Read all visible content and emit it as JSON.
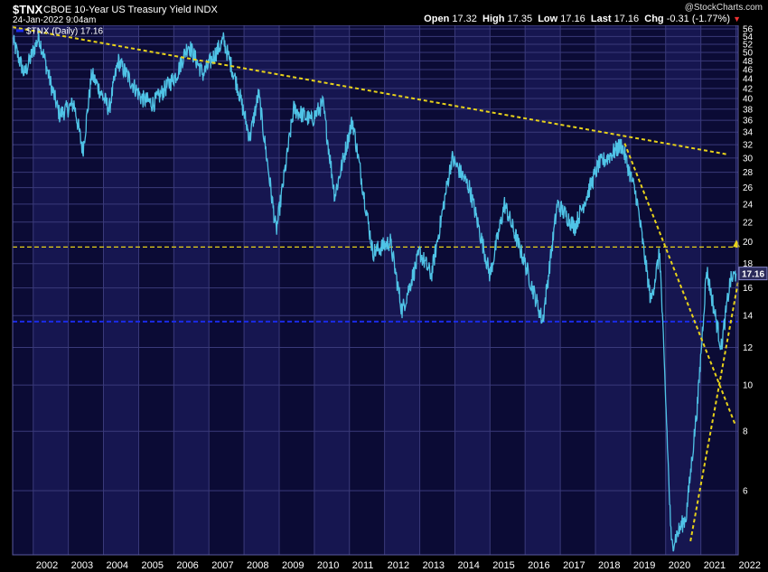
{
  "header": {
    "ticker": "$TNX",
    "title": "CBOE 10-Year US Treasury Yield INDX",
    "datetime": "24-Jan-2022 9:04am",
    "watermark": "@StockCharts.com",
    "quote": {
      "open_label": "Open",
      "open": "17.32",
      "high_label": "High",
      "high": "17.35",
      "low_label": "Low",
      "low": "17.16",
      "last_label": "Last",
      "last": "17.16",
      "chg_label": "Chg",
      "chg": "-0.31 (-1.77%)"
    }
  },
  "legend": {
    "label": "$TNX (Daily) 17.16"
  },
  "colors": {
    "background": "#000000",
    "plot_band_a": "#0b0b35",
    "plot_band_b": "#161650",
    "grid": "#3a3a7a",
    "series": "#4fc3e6",
    "trend_yellow": "#e8d21a",
    "support_blue": "#1a2be8",
    "price_tag": "#2a2a5a"
  },
  "chart_data": {
    "type": "line",
    "title": "CBOE 10-Year US Treasury Yield INDX",
    "scale": "log",
    "ylim": [
      4.4,
      57
    ],
    "yticks": [
      6,
      8,
      10,
      12,
      14,
      16,
      18,
      20,
      22,
      24,
      26,
      28,
      30,
      32,
      34,
      36,
      38,
      40,
      42,
      44,
      46,
      48,
      50,
      52,
      54,
      56
    ],
    "xlim": [
      "2001-06-01",
      "2022-01-24"
    ],
    "xticks": [
      "2002",
      "2003",
      "2004",
      "2005",
      "2006",
      "2007",
      "2008",
      "2009",
      "2010",
      "2011",
      "2012",
      "2013",
      "2014",
      "2015",
      "2016",
      "2017",
      "2018",
      "2019",
      "2020",
      "2021",
      "2022"
    ],
    "last_value": "17.16",
    "series": [
      {
        "name": "$TNX (Daily)",
        "x": [
          "2001-06",
          "2001-10",
          "2002-03",
          "2002-07",
          "2002-10",
          "2003-03",
          "2003-06",
          "2003-09",
          "2004-03",
          "2004-06",
          "2005-02",
          "2005-06",
          "2006-02",
          "2006-06",
          "2006-11",
          "2007-06",
          "2007-11",
          "2008-03",
          "2008-06",
          "2008-12",
          "2009-06",
          "2009-12",
          "2010-04",
          "2010-08",
          "2011-02",
          "2011-09",
          "2012-03",
          "2012-07",
          "2013-01",
          "2013-05",
          "2013-12",
          "2014-06",
          "2015-01",
          "2015-06",
          "2016-01",
          "2016-07",
          "2016-12",
          "2017-06",
          "2018-02",
          "2018-05",
          "2018-10",
          "2019-03",
          "2019-08",
          "2019-11",
          "2020-03",
          "2020-08",
          "2020-12",
          "2021-03",
          "2021-08",
          "2021-11",
          "2022-01"
        ],
        "values": [
          53,
          45,
          54,
          43,
          37,
          39,
          31,
          45,
          38,
          48,
          40,
          39,
          45,
          52,
          45,
          53,
          42,
          33,
          41,
          21,
          38,
          36,
          39,
          25,
          36,
          19,
          20,
          14.3,
          19,
          17,
          30,
          26,
          17,
          24,
          18,
          13.6,
          24,
          21.5,
          29,
          30,
          32,
          25,
          15,
          19,
          4.6,
          5.3,
          9.3,
          17.5,
          12,
          16.5,
          17.16
        ]
      }
    ],
    "annotations": [
      {
        "type": "trendline",
        "color": "yellow",
        "style": "dashed",
        "from": [
          "2001-06-01",
          56.5
        ],
        "to": [
          "2021-10-15",
          30.5
        ]
      },
      {
        "type": "trendline",
        "color": "yellow",
        "style": "dashed",
        "from": [
          "2018-11-01",
          32.2
        ],
        "to": [
          "2021-12-20",
          8.3
        ]
      },
      {
        "type": "trendline",
        "color": "yellow",
        "style": "dashed",
        "from": [
          "2020-09-15",
          4.7
        ],
        "to": [
          "2022-01-24",
          16.5
        ]
      },
      {
        "type": "hline",
        "color": "yellow",
        "style": "dashed",
        "value": 19.5
      },
      {
        "type": "hline",
        "color": "blue",
        "style": "dashed",
        "value": 13.6
      }
    ]
  }
}
